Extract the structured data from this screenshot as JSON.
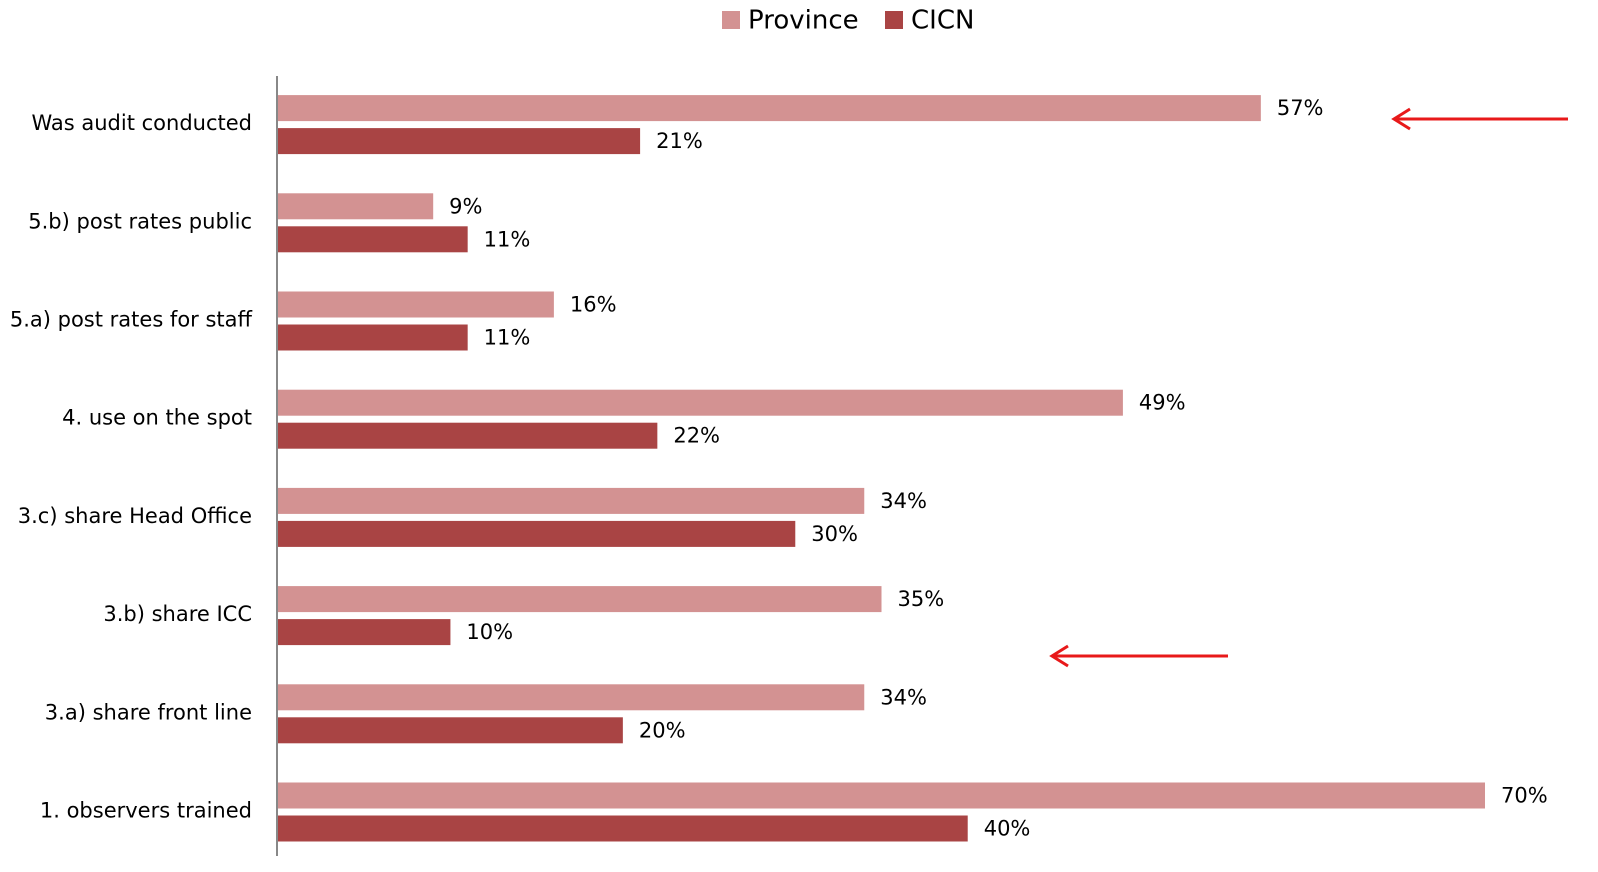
{
  "chart_data": {
    "type": "hbar",
    "legend": "top",
    "categories": [
      "Was audit conducted",
      "5.b) post rates public",
      "5.a) post rates for staff",
      "4. use on the spot",
      "3.c) share Head Office",
      "3.b) share ICC",
      "3.a) share front line",
      "1. observers trained"
    ],
    "series": [
      {
        "name": "Province",
        "color": "#d39292",
        "values": [
          57,
          9,
          16,
          49,
          34,
          35,
          34,
          70
        ],
        "value_labels": [
          "57%",
          "9%",
          "16%",
          "49%",
          "34%",
          "35%",
          "34%",
          "70%"
        ]
      },
      {
        "name": "CICN",
        "color": "#a94444",
        "values": [
          21,
          11,
          11,
          22,
          30,
          10,
          20,
          40
        ],
        "value_labels": [
          "21%",
          "11%",
          "11%",
          "22%",
          "30%",
          "10%",
          "20%",
          "40%"
        ]
      }
    ]
  }
}
